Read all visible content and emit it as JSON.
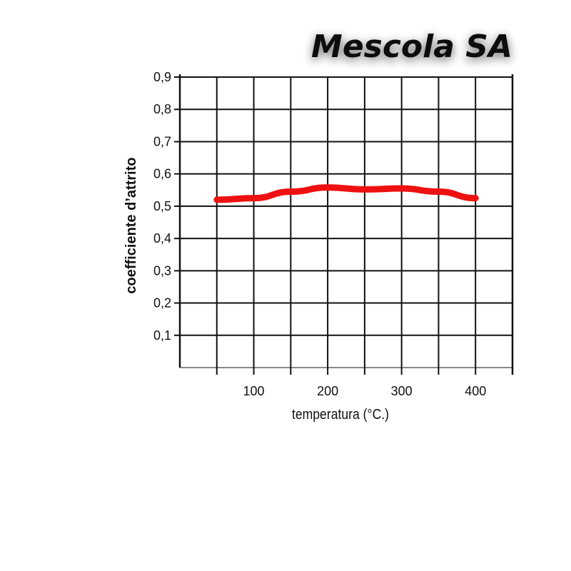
{
  "chart_data": {
    "type": "line",
    "title": "Mescola SA",
    "xlabel": "temperatura (°C.)",
    "ylabel": "coefficiente d’attrito",
    "xlim": [
      0,
      450
    ],
    "ylim": [
      0,
      0.9
    ],
    "x_ticks": [
      {
        "value": 100,
        "label": "100"
      },
      {
        "value": 200,
        "label": "200"
      },
      {
        "value": 300,
        "label": "300"
      },
      {
        "value": 400,
        "label": "400"
      }
    ],
    "y_ticks": [
      {
        "value": 0.1,
        "label": "0,1"
      },
      {
        "value": 0.2,
        "label": "0,2"
      },
      {
        "value": 0.3,
        "label": "0,3"
      },
      {
        "value": 0.4,
        "label": "0,4"
      },
      {
        "value": 0.5,
        "label": "0,5"
      },
      {
        "value": 0.6,
        "label": "0,6"
      },
      {
        "value": 0.7,
        "label": "0,7"
      },
      {
        "value": 0.8,
        "label": "0,8"
      },
      {
        "value": 0.9,
        "label": "0,9"
      }
    ],
    "grid": true,
    "grid_step_x": 50,
    "grid_step_y": 0.1,
    "series": [
      {
        "color": "#ee1111",
        "points": [
          {
            "x": 50,
            "y": 0.52
          },
          {
            "x": 100,
            "y": 0.525
          },
          {
            "x": 150,
            "y": 0.545
          },
          {
            "x": 200,
            "y": 0.558
          },
          {
            "x": 250,
            "y": 0.552
          },
          {
            "x": 300,
            "y": 0.555
          },
          {
            "x": 350,
            "y": 0.545
          },
          {
            "x": 400,
            "y": 0.525
          }
        ]
      }
    ]
  }
}
